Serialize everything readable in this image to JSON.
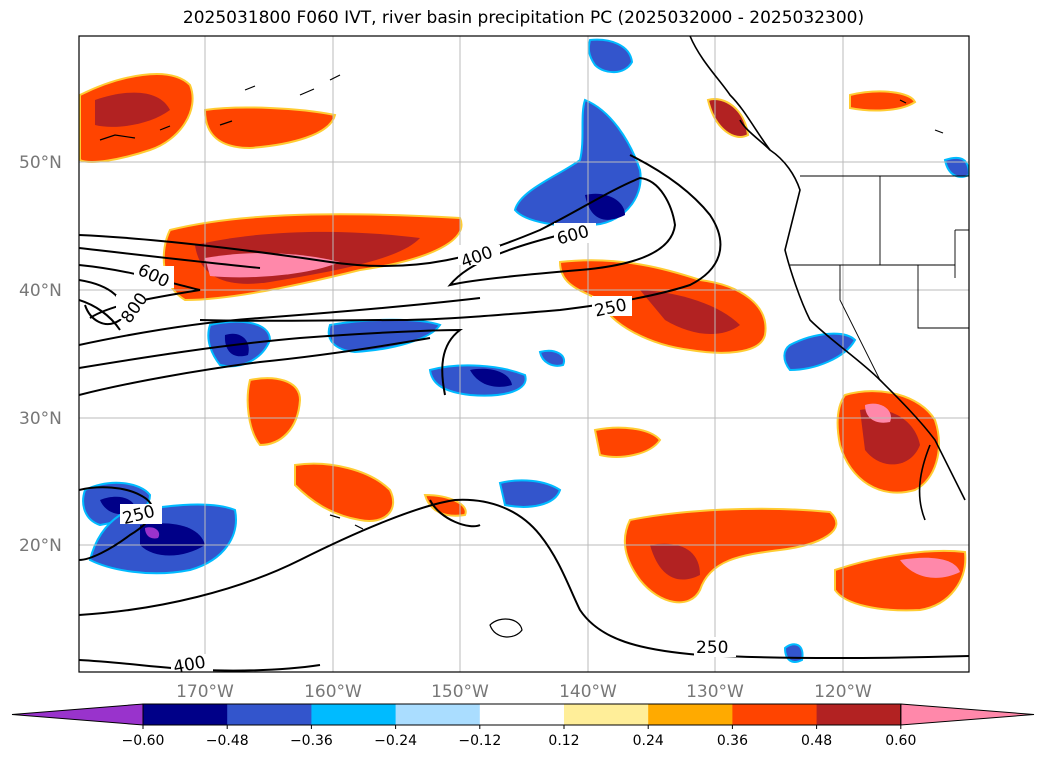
{
  "title": "2025031800 F060 IVT, river basin precipitation PC (2025032000 - 2025032300)",
  "map": {
    "lat_ticks": [
      "50°N",
      "40°N",
      "30°N",
      "20°N"
    ],
    "lon_ticks": [
      "170°W",
      "160°W",
      "150°W",
      "140°W",
      "130°W",
      "120°W"
    ],
    "contour_labels": [
      "600",
      "800",
      "400",
      "600",
      "250",
      "250",
      "250",
      "400"
    ]
  },
  "colorbar": {
    "colors": [
      "#9933cc",
      "#000088",
      "#3355cc",
      "#00bbff",
      "#aaddff",
      "#ffffff",
      "#ffee99",
      "#ffaa00",
      "#ff4400",
      "#b22222",
      "#ff88aa"
    ],
    "tick_labels": [
      "−0.60",
      "−0.48",
      "−0.36",
      "−0.24",
      "−0.12",
      "0.12",
      "0.24",
      "0.36",
      "0.48",
      "0.60"
    ]
  }
}
